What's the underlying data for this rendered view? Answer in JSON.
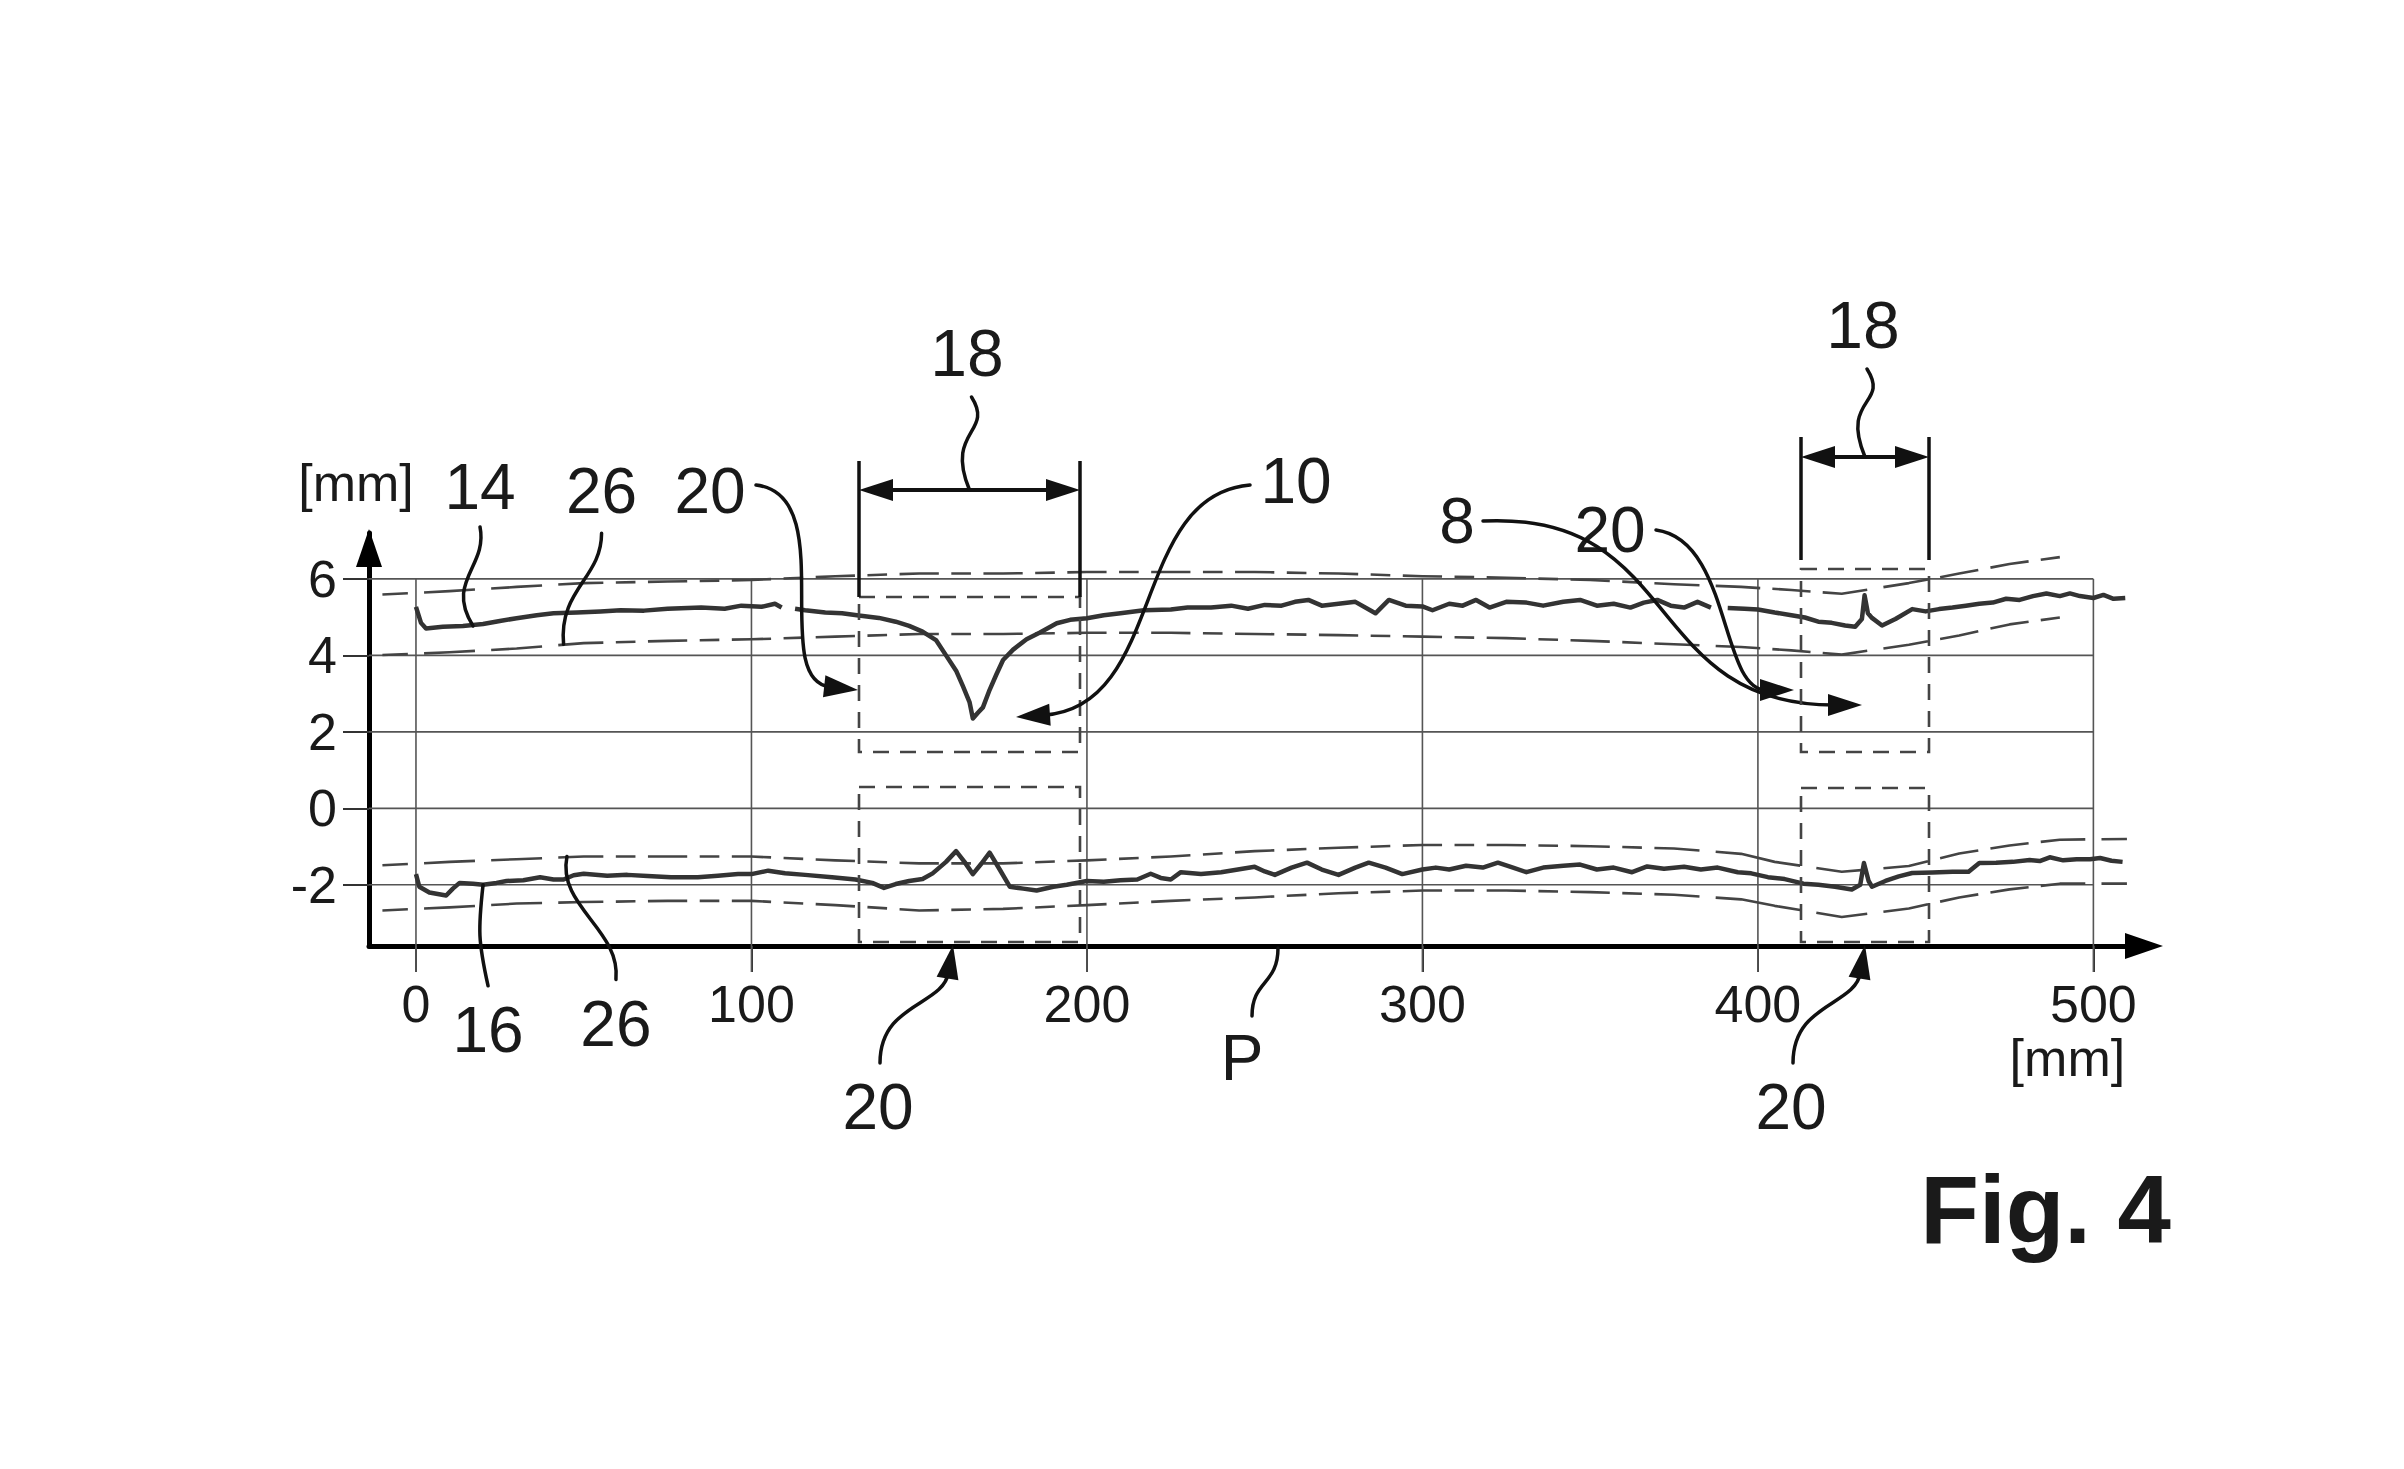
{
  "chart_data": {
    "type": "line",
    "title": "Fig. 4",
    "xlabel": "[mm]",
    "ylabel": "[mm]",
    "xlim": [
      -14,
      513
    ],
    "ylim": [
      -3.6,
      7.2
    ],
    "xticks": [
      0,
      100,
      200,
      300,
      400,
      500
    ],
    "yticks": [
      -2,
      0,
      2,
      4,
      6
    ],
    "grid": true,
    "marker": "none",
    "series": [
      {
        "color": "#333333",
        "x": [
          0,
          1.5,
          3,
          8,
          14,
          20,
          25,
          30,
          36,
          41,
          48,
          55,
          61,
          68,
          75,
          85,
          92,
          97,
          103,
          107,
          109,
          111,
          113,
          116,
          122,
          127,
          132,
          138,
          143,
          147,
          151,
          155,
          158,
          161,
          163,
          165,
          166,
          167.5,
          169,
          171,
          173,
          175,
          178,
          182,
          186,
          191,
          195,
          200,
          205,
          210,
          217,
          225,
          230,
          237,
          243,
          248,
          253,
          258,
          262,
          266,
          270,
          275,
          280,
          286,
          290,
          295,
          300,
          303,
          308,
          312,
          316,
          320,
          325,
          331,
          336,
          342,
          347,
          352,
          357,
          362,
          366,
          370,
          374,
          378,
          382,
          386,
          388,
          391,
          396,
          400,
          405,
          410,
          414,
          418,
          422,
          426,
          429,
          431,
          431.8,
          432.8,
          434,
          437,
          441,
          446,
          450,
          454,
          458,
          462,
          466,
          470,
          474,
          478,
          482,
          486,
          490,
          493,
          496,
          500,
          503,
          506,
          509.5
        ],
        "values": [
          5.27,
          4.85,
          4.7,
          4.75,
          4.77,
          4.82,
          4.9,
          4.97,
          5.05,
          5.1,
          5.12,
          5.15,
          5.18,
          5.17,
          5.22,
          5.25,
          5.22,
          5.3,
          5.27,
          5.35,
          5.25,
          null,
          5.22,
          5.18,
          5.12,
          5.1,
          5.04,
          4.98,
          4.88,
          4.77,
          4.62,
          4.4,
          4.0,
          3.6,
          3.2,
          2.78,
          2.35,
          2.5,
          2.64,
          3.1,
          3.5,
          3.88,
          4.15,
          4.42,
          4.6,
          4.84,
          4.93,
          4.97,
          5.05,
          5.1,
          5.18,
          5.2,
          5.25,
          5.25,
          5.3,
          5.22,
          5.32,
          5.3,
          5.4,
          5.45,
          5.3,
          5.35,
          5.4,
          5.1,
          5.45,
          5.3,
          5.28,
          5.18,
          5.35,
          5.3,
          5.45,
          5.25,
          5.4,
          5.38,
          5.3,
          5.4,
          5.45,
          5.3,
          5.35,
          5.25,
          5.38,
          5.45,
          5.3,
          5.25,
          5.4,
          5.25,
          null,
          5.24,
          5.22,
          5.2,
          5.12,
          5.05,
          4.99,
          4.88,
          4.85,
          4.78,
          4.75,
          4.95,
          5.57,
          5.1,
          4.98,
          4.78,
          4.95,
          5.21,
          5.15,
          5.21,
          5.25,
          5.3,
          5.35,
          5.38,
          5.48,
          5.45,
          5.55,
          5.62,
          5.55,
          5.62,
          5.55,
          5.5,
          5.58,
          5.48,
          5.5
        ]
      },
      {
        "color": "#333333",
        "x": [
          0,
          1,
          4,
          9,
          11,
          13,
          17,
          20,
          24,
          27,
          32,
          37,
          41,
          44,
          47,
          50,
          57,
          63,
          69,
          76,
          84,
          90,
          96,
          100,
          105,
          110,
          116,
          124,
          131,
          136,
          139.5,
          143,
          147,
          151,
          154,
          158,
          161,
          163.5,
          166,
          168.5,
          171,
          174,
          177,
          181,
          185,
          190,
          194,
          200,
          205,
          210,
          215,
          219,
          222,
          225,
          228,
          234,
          240,
          245,
          250,
          253,
          256,
          261,
          265.6,
          270,
          275,
          280,
          284,
          289,
          294,
          300,
          304,
          308,
          313,
          318,
          322.5,
          327,
          331,
          336,
          342,
          347,
          352,
          357,
          362.5,
          367,
          372,
          378,
          383,
          388,
          394,
          398,
          403,
          408,
          413.6,
          418,
          423,
          428,
          430.5,
          431.6,
          433,
          434,
          438,
          442,
          446,
          452,
          458,
          462.8,
          466,
          471,
          476,
          481,
          484,
          487,
          491,
          495,
          499,
          502,
          505.4,
          508.7
        ],
        "values": [
          -1.72,
          -2.05,
          -2.2,
          -2.28,
          -2.1,
          -1.95,
          -1.97,
          -2.0,
          -1.95,
          -1.9,
          -1.88,
          -1.8,
          -1.86,
          -1.86,
          -1.75,
          -1.71,
          -1.76,
          -1.74,
          -1.77,
          -1.8,
          -1.8,
          -1.76,
          -1.72,
          -1.72,
          -1.63,
          -1.7,
          -1.74,
          -1.8,
          -1.86,
          -1.95,
          -2.08,
          -1.98,
          -1.9,
          -1.85,
          -1.7,
          -1.4,
          -1.12,
          -1.4,
          -1.72,
          -1.45,
          -1.16,
          -1.6,
          -2.05,
          -2.1,
          -2.15,
          -2.05,
          -2.0,
          -1.9,
          -1.92,
          -1.88,
          -1.86,
          -1.71,
          -1.82,
          -1.86,
          -1.67,
          -1.72,
          -1.67,
          -1.6,
          -1.53,
          -1.65,
          -1.74,
          -1.55,
          -1.42,
          -1.6,
          -1.74,
          -1.55,
          -1.42,
          -1.55,
          -1.72,
          -1.6,
          -1.55,
          -1.6,
          -1.5,
          -1.55,
          -1.42,
          -1.55,
          -1.67,
          -1.55,
          -1.5,
          -1.47,
          -1.6,
          -1.55,
          -1.67,
          -1.52,
          -1.58,
          -1.53,
          -1.6,
          -1.55,
          -1.67,
          -1.7,
          -1.8,
          -1.85,
          -1.97,
          -2.0,
          -2.05,
          -2.12,
          -2.0,
          -1.43,
          -1.9,
          -2.05,
          -1.9,
          -1.78,
          -1.69,
          -1.68,
          -1.66,
          -1.66,
          -1.43,
          -1.42,
          -1.4,
          -1.35,
          -1.38,
          -1.28,
          -1.36,
          -1.33,
          -1.33,
          -1.3,
          -1.37,
          -1.4
        ]
      },
      {
        "color": "#444444",
        "line_style": "dashed",
        "x": [
          -10,
          10,
          30,
          50,
          75,
          100,
          125,
          150,
          175,
          200,
          225,
          250,
          275,
          300,
          325,
          350,
          375,
          395,
          410,
          425,
          445,
          460,
          475,
          490
        ],
        "values": [
          5.59,
          5.68,
          5.79,
          5.89,
          5.93,
          5.97,
          6.07,
          6.14,
          6.14,
          6.18,
          6.18,
          6.18,
          6.14,
          6.07,
          6.03,
          5.97,
          5.86,
          5.79,
          5.71,
          5.61,
          5.89,
          6.14,
          6.39,
          6.57
        ]
      },
      {
        "color": "#444444",
        "line_style": "dashed",
        "x": [
          -10,
          10,
          30,
          50,
          75,
          100,
          125,
          150,
          175,
          200,
          225,
          250,
          275,
          300,
          325,
          350,
          375,
          395,
          410,
          425,
          445,
          460,
          475,
          490
        ],
        "values": [
          4.01,
          4.08,
          4.18,
          4.32,
          4.38,
          4.42,
          4.49,
          4.56,
          4.56,
          4.59,
          4.59,
          4.56,
          4.53,
          4.49,
          4.45,
          4.38,
          4.29,
          4.22,
          4.13,
          4.02,
          4.28,
          4.52,
          4.81,
          4.99
        ]
      },
      {
        "color": "#444444",
        "line_style": "dashed",
        "x": [
          -10,
          10,
          30,
          50,
          75,
          100,
          125,
          150,
          175,
          200,
          225,
          250,
          275,
          300,
          325,
          350,
          375,
          395,
          405,
          425,
          445,
          460,
          475,
          490,
          510
        ],
        "values": [
          -1.49,
          -1.4,
          -1.33,
          -1.26,
          -1.26,
          -1.26,
          -1.36,
          -1.44,
          -1.44,
          -1.36,
          -1.26,
          -1.12,
          -1.03,
          -0.96,
          -0.96,
          -0.99,
          -1.05,
          -1.19,
          -1.4,
          -1.66,
          -1.51,
          -1.18,
          -0.97,
          -0.82,
          -0.8
        ]
      },
      {
        "color": "#444444",
        "line_style": "dashed",
        "x": [
          -10,
          10,
          30,
          50,
          75,
          100,
          125,
          150,
          175,
          200,
          225,
          250,
          275,
          300,
          325,
          350,
          375,
          395,
          405,
          425,
          445,
          460,
          475,
          490,
          510
        ],
        "values": [
          -2.67,
          -2.59,
          -2.49,
          -2.45,
          -2.42,
          -2.42,
          -2.53,
          -2.67,
          -2.63,
          -2.53,
          -2.42,
          -2.33,
          -2.22,
          -2.15,
          -2.15,
          -2.19,
          -2.26,
          -2.38,
          -2.55,
          -2.84,
          -2.62,
          -2.33,
          -2.12,
          -1.97,
          -1.97
        ]
      }
    ],
    "annotations": [
      {
        "text": "14",
        "x": 17,
        "y": 4.77
      },
      {
        "text": "26",
        "x": 44,
        "y": 4.29
      },
      "20",
      "18",
      "10",
      "8",
      "20",
      "18",
      {
        "text": "16",
        "x": 20,
        "y": -2.0
      },
      {
        "text": "26",
        "x": 45,
        "y": -1.26
      },
      "P",
      "20",
      "20"
    ]
  }
}
